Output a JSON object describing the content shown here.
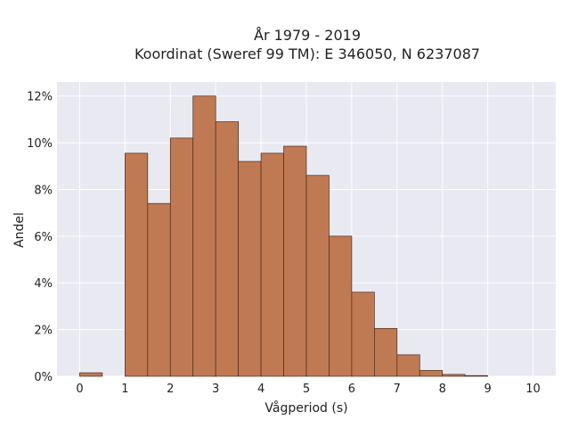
{
  "chart_data": {
    "type": "bar",
    "title_line1": "År 1979 - 2019",
    "title_line2": "Koordinat (Sweref 99 TM): E 346050, N 6237087",
    "xlabel": "Vågperiod (s)",
    "ylabel": "Andel",
    "bin_width": 0.5,
    "bins": [
      {
        "start": 0.0,
        "value": 0.15
      },
      {
        "start": 0.5,
        "value": 0.0
      },
      {
        "start": 1.0,
        "value": 9.55
      },
      {
        "start": 1.5,
        "value": 7.4
      },
      {
        "start": 2.0,
        "value": 10.2
      },
      {
        "start": 2.5,
        "value": 12.0
      },
      {
        "start": 3.0,
        "value": 10.9
      },
      {
        "start": 3.5,
        "value": 9.2
      },
      {
        "start": 4.0,
        "value": 9.55
      },
      {
        "start": 4.5,
        "value": 9.85
      },
      {
        "start": 5.0,
        "value": 8.6
      },
      {
        "start": 5.5,
        "value": 6.0
      },
      {
        "start": 6.0,
        "value": 3.6
      },
      {
        "start": 6.5,
        "value": 2.05
      },
      {
        "start": 7.0,
        "value": 0.92
      },
      {
        "start": 7.5,
        "value": 0.25
      },
      {
        "start": 8.0,
        "value": 0.08
      },
      {
        "start": 8.5,
        "value": 0.03
      }
    ],
    "xlim": [
      -0.5,
      10.5
    ],
    "ylim": [
      0,
      12.6
    ],
    "x_ticks": [
      "0",
      "1",
      "2",
      "3",
      "4",
      "5",
      "6",
      "7",
      "8",
      "9",
      "10"
    ],
    "y_ticks": [
      "0%",
      "2%",
      "4%",
      "6%",
      "8%",
      "10%",
      "12%"
    ],
    "grid": true,
    "colors": {
      "bar_fill": "#c07a53",
      "bar_edge": "#4a2a1a",
      "plot_bg": "#e9e9f1",
      "grid": "#ffffff"
    }
  }
}
